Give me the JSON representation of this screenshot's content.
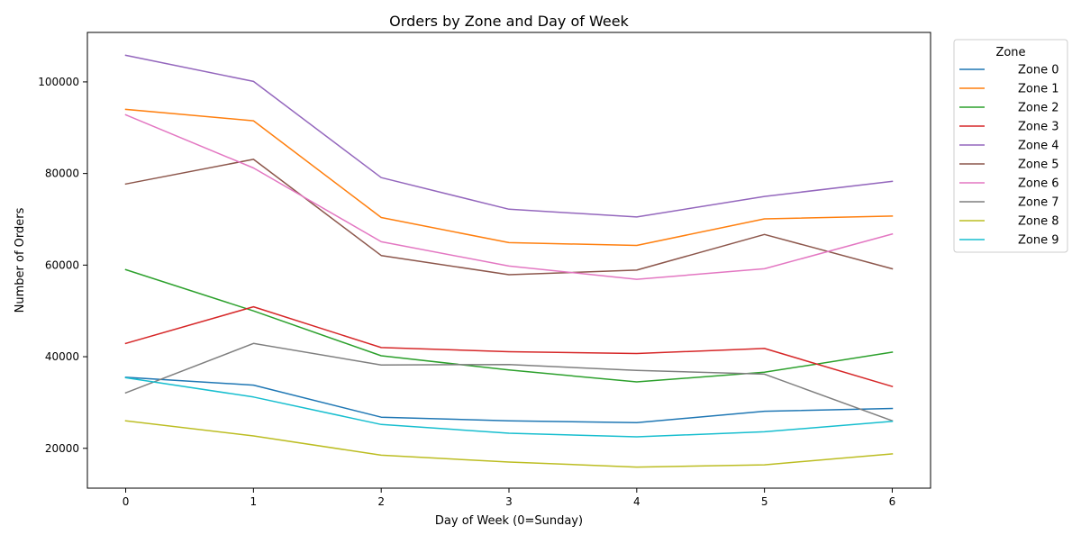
{
  "chart_data": {
    "type": "line",
    "title": "Orders by Zone and Day of Week",
    "xlabel": "Day of Week (0=Sunday)",
    "ylabel": "Number of Orders",
    "x": [
      0,
      1,
      2,
      3,
      4,
      5,
      6
    ],
    "xlim": [
      -0.3,
      6.3
    ],
    "ylim": [
      11300,
      110800
    ],
    "yticks": [
      20000,
      40000,
      60000,
      80000,
      100000
    ],
    "grid": false,
    "legend": {
      "title": "Zone",
      "placement": "outside-upper-right"
    },
    "series": [
      {
        "name": "Zone 0",
        "color": "#1f77b4",
        "values": [
          35500,
          33800,
          26800,
          26000,
          25600,
          28100,
          28700
        ]
      },
      {
        "name": "Zone 1",
        "color": "#ff7f0e",
        "values": [
          94000,
          91500,
          70400,
          64900,
          64300,
          70100,
          70700
        ]
      },
      {
        "name": "Zone 2",
        "color": "#2ca02c",
        "values": [
          59000,
          50000,
          40200,
          37100,
          34500,
          36600,
          41000
        ]
      },
      {
        "name": "Zone 3",
        "color": "#d62728",
        "values": [
          42900,
          50900,
          42000,
          41100,
          40700,
          41800,
          33500
        ]
      },
      {
        "name": "Zone 4",
        "color": "#9467bd",
        "values": [
          105800,
          100100,
          79100,
          72200,
          70500,
          75000,
          78300
        ]
      },
      {
        "name": "Zone 5",
        "color": "#8c564b",
        "values": [
          77700,
          83100,
          62100,
          57900,
          58900,
          66700,
          59200
        ]
      },
      {
        "name": "Zone 6",
        "color": "#e377c2",
        "values": [
          92800,
          81200,
          65100,
          59800,
          56900,
          59200,
          66800
        ]
      },
      {
        "name": "Zone 7",
        "color": "#7f7f7f",
        "values": [
          32100,
          42900,
          38200,
          38300,
          37000,
          36200,
          26000
        ]
      },
      {
        "name": "Zone 8",
        "color": "#bcbd22",
        "values": [
          26000,
          22700,
          18500,
          17000,
          15900,
          16400,
          18800
        ]
      },
      {
        "name": "Zone 9",
        "color": "#17becf",
        "values": [
          35400,
          31200,
          25200,
          23300,
          22500,
          23600,
          25900
        ]
      }
    ]
  }
}
